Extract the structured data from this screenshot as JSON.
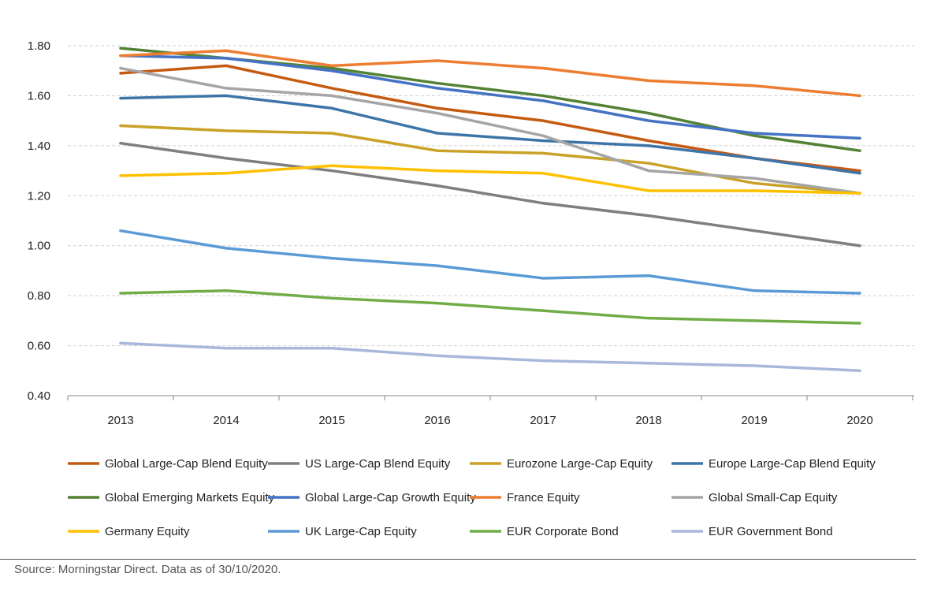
{
  "chart_data": {
    "type": "line",
    "title": "",
    "xlabel": "",
    "ylabel": "",
    "x": [
      "2013",
      "2014",
      "2015",
      "2016",
      "2017",
      "2018",
      "2019",
      "2020"
    ],
    "ylim": [
      0.4,
      1.8
    ],
    "yticks": [
      "0.40",
      "0.60",
      "0.80",
      "1.00",
      "1.20",
      "1.40",
      "1.60",
      "1.80"
    ],
    "grid": "horizontal dashed",
    "legend_placement": "bottom",
    "series": [
      {
        "name": "Global Large-Cap Blend Equity",
        "color": "#C55A11",
        "values": [
          1.69,
          1.72,
          1.63,
          1.55,
          1.5,
          1.42,
          1.35,
          1.3
        ]
      },
      {
        "name": "US Large-Cap Blend Equity",
        "color": "#7F7F7F",
        "values": [
          1.41,
          1.35,
          1.3,
          1.24,
          1.17,
          1.12,
          1.06,
          1.0
        ]
      },
      {
        "name": "Eurozone Large-Cap Equity",
        "color": "#C9A227",
        "values": [
          1.48,
          1.46,
          1.45,
          1.38,
          1.37,
          1.33,
          1.25,
          1.21
        ]
      },
      {
        "name": "Europe Large-Cap Blend Equity",
        "color": "#3E75A8",
        "values": [
          1.59,
          1.6,
          1.55,
          1.45,
          1.42,
          1.4,
          1.35,
          1.29
        ]
      },
      {
        "name": "Global Emerging Markets Equity",
        "color": "#548235",
        "values": [
          1.79,
          1.75,
          1.71,
          1.65,
          1.6,
          1.53,
          1.44,
          1.38
        ]
      },
      {
        "name": "Global Large-Cap Growth Equity",
        "color": "#4472C4",
        "values": [
          1.76,
          1.75,
          1.7,
          1.63,
          1.58,
          1.5,
          1.45,
          1.43
        ]
      },
      {
        "name": "France Equity",
        "color": "#ED7D31",
        "values": [
          1.76,
          1.78,
          1.72,
          1.74,
          1.71,
          1.66,
          1.64,
          1.6
        ]
      },
      {
        "name": "Global Small-Cap Equity",
        "color": "#A5A5A5",
        "values": [
          1.71,
          1.63,
          1.6,
          1.53,
          1.44,
          1.3,
          1.27,
          1.21
        ]
      },
      {
        "name": "Germany Equity",
        "color": "#FFC000",
        "values": [
          1.28,
          1.29,
          1.32,
          1.3,
          1.29,
          1.22,
          1.22,
          1.21
        ]
      },
      {
        "name": "UK Large-Cap Equity",
        "color": "#5B9BD5",
        "values": [
          1.06,
          0.99,
          0.95,
          0.92,
          0.87,
          0.88,
          0.82,
          0.81
        ]
      },
      {
        "name": "EUR Corporate Bond",
        "color": "#70AD47",
        "values": [
          0.81,
          0.82,
          0.79,
          0.77,
          0.74,
          0.71,
          0.7,
          0.69
        ]
      },
      {
        "name": "EUR Government Bond",
        "color": "#A9B7DB",
        "values": [
          0.61,
          0.59,
          0.59,
          0.56,
          0.54,
          0.53,
          0.52,
          0.5
        ]
      }
    ]
  },
  "source_note": "Source: Morningstar Direct. Data as of 30/10/2020."
}
